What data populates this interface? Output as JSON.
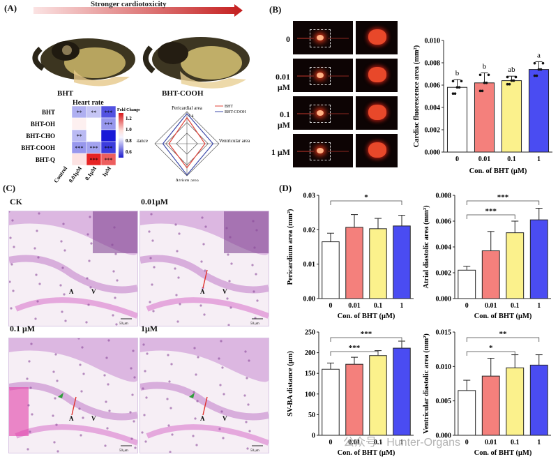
{
  "figure": {
    "panel_labels": {
      "a": "(A)",
      "b": "(B)",
      "c": "(C)",
      "d": "(D)"
    },
    "arrow_text": "Stronger cardiotoxicity",
    "fish_labels": [
      "BHT",
      "BHT-COOH"
    ],
    "watermark": "公众号 · Hunter-Organs",
    "colors": {
      "c0": "#ffffff",
      "c1": "#f4807c",
      "c2": "#fbf18c",
      "c3": "#4a4cf2"
    }
  },
  "heatmap": {
    "title": "Heart rate",
    "rows": [
      "BHT",
      "BHT-OH",
      "BHT-CHO",
      "BHT-COOH",
      "BHT-Q"
    ],
    "cols": [
      "Control",
      "0.01μM",
      "0.1μM",
      "1μM"
    ],
    "cells": [
      [
        "",
        "**",
        "**",
        "***"
      ],
      [
        "",
        "",
        "",
        "***"
      ],
      [
        "",
        "**",
        "",
        ""
      ],
      [
        "",
        "***",
        "***",
        "***"
      ],
      [
        "",
        "",
        "***",
        "***"
      ]
    ],
    "values": [
      [
        1.0,
        0.86,
        0.9,
        0.7
      ],
      [
        1.0,
        1.02,
        1.0,
        0.82
      ],
      [
        1.0,
        0.88,
        1.0,
        0.6
      ],
      [
        1.0,
        0.82,
        0.84,
        0.66
      ],
      [
        1.0,
        1.04,
        1.3,
        1.22
      ]
    ],
    "colorbar_title": "Fold Change",
    "colorbar_ticks": [
      "1.2",
      "1.0",
      "0.8",
      "0.6"
    ]
  },
  "radar": {
    "axes": [
      "Pericardial area",
      "Ventricular area",
      "Atrium area",
      "SV-BA distance"
    ],
    "center_tick": "1.4",
    "legend": [
      "BHT",
      "BHT-COOH"
    ],
    "series": [
      {
        "name": "BHT",
        "color": "#e0443a",
        "values": [
          1.25,
          1.05,
          1.2,
          1.05
        ]
      },
      {
        "name": "BHT-COOH",
        "color": "#3b48a8",
        "values": [
          1.35,
          1.25,
          1.38,
          1.2
        ]
      }
    ]
  },
  "fluor_rows": [
    "0",
    "0.01 μM",
    "0.1 μM",
    "1 μM"
  ],
  "histology": {
    "labels": [
      "CK",
      "0.01μM",
      "0.1 μM",
      "1μM"
    ],
    "marker_a": "A",
    "marker_v": "V",
    "scale": "50 μm"
  },
  "chart_data": [
    {
      "id": "B",
      "type": "bar",
      "categories": [
        "0",
        "0.01",
        "0.1",
        "1"
      ],
      "values": [
        0.0058,
        0.0062,
        0.0064,
        0.0074
      ],
      "errors": [
        0.0007,
        0.0009,
        0.0004,
        0.0007
      ],
      "ylabel": "Cardiac fluorescence area (mm²)",
      "xlabel": "Con. of BHT (μM)",
      "ylim": [
        0,
        0.01
      ],
      "ticks": [
        "0.000",
        "0.002",
        "0.004",
        "0.006",
        "0.008",
        "0.010"
      ],
      "letters": [
        "b",
        "b",
        "ab",
        "a"
      ]
    },
    {
      "id": "D1",
      "type": "bar",
      "categories": [
        "0",
        "0.01",
        "0.1",
        "1"
      ],
      "values": [
        0.0165,
        0.0207,
        0.0203,
        0.0211
      ],
      "errors": [
        0.0025,
        0.0037,
        0.003,
        0.0031
      ],
      "ylabel": "Pericardium area (mm²)",
      "xlabel": "Con. of BHT (μM)",
      "ylim": [
        0,
        0.03
      ],
      "ticks": [
        "0.00",
        "0.01",
        "0.02",
        "0.03"
      ],
      "sig": [
        {
          "from": 0,
          "to": 3,
          "label": "*"
        }
      ]
    },
    {
      "id": "D2",
      "type": "bar",
      "categories": [
        "0",
        "0.01",
        "0.1",
        "1"
      ],
      "values": [
        0.0022,
        0.0037,
        0.0051,
        0.0061
      ],
      "errors": [
        0.0003,
        0.0015,
        0.0009,
        0.0009
      ],
      "ylabel": "Atrial diastolic area (mm²)",
      "xlabel": "Con. of BHT (μM)",
      "ylim": [
        0,
        0.008
      ],
      "ticks": [
        "0.000",
        "0.002",
        "0.004",
        "0.006",
        "0.008"
      ],
      "sig": [
        {
          "from": 0,
          "to": 2,
          "label": "***"
        },
        {
          "from": 0,
          "to": 3,
          "label": "***"
        }
      ]
    },
    {
      "id": "D3",
      "type": "bar",
      "categories": [
        "0",
        "0.01",
        "0.1",
        "1"
      ],
      "values": [
        160,
        172,
        193,
        211
      ],
      "errors": [
        15,
        17,
        12,
        17
      ],
      "ylabel": "SV-BA distance (μm)",
      "xlabel": "Con. of BHT (μM)",
      "ylim": [
        0,
        250
      ],
      "ticks": [
        "0",
        "50",
        "100",
        "150",
        "200",
        "250"
      ],
      "sig": [
        {
          "from": 0,
          "to": 2,
          "label": "***"
        },
        {
          "from": 0,
          "to": 3,
          "label": "***"
        }
      ]
    },
    {
      "id": "D4",
      "type": "bar",
      "categories": [
        "0",
        "0.01",
        "0.1",
        "1"
      ],
      "values": [
        0.0065,
        0.0086,
        0.0098,
        0.0102
      ],
      "errors": [
        0.0015,
        0.0026,
        0.0019,
        0.0015
      ],
      "ylabel": "Ventricular diastolic area (mm²)",
      "xlabel": "Con. of BHT (μM)",
      "ylim": [
        0,
        0.015
      ],
      "ticks": [
        "0.000",
        "0.005",
        "0.010",
        "0.015"
      ],
      "sig": [
        {
          "from": 0,
          "to": 2,
          "label": "*"
        },
        {
          "from": 0,
          "to": 3,
          "label": "**"
        }
      ]
    }
  ]
}
